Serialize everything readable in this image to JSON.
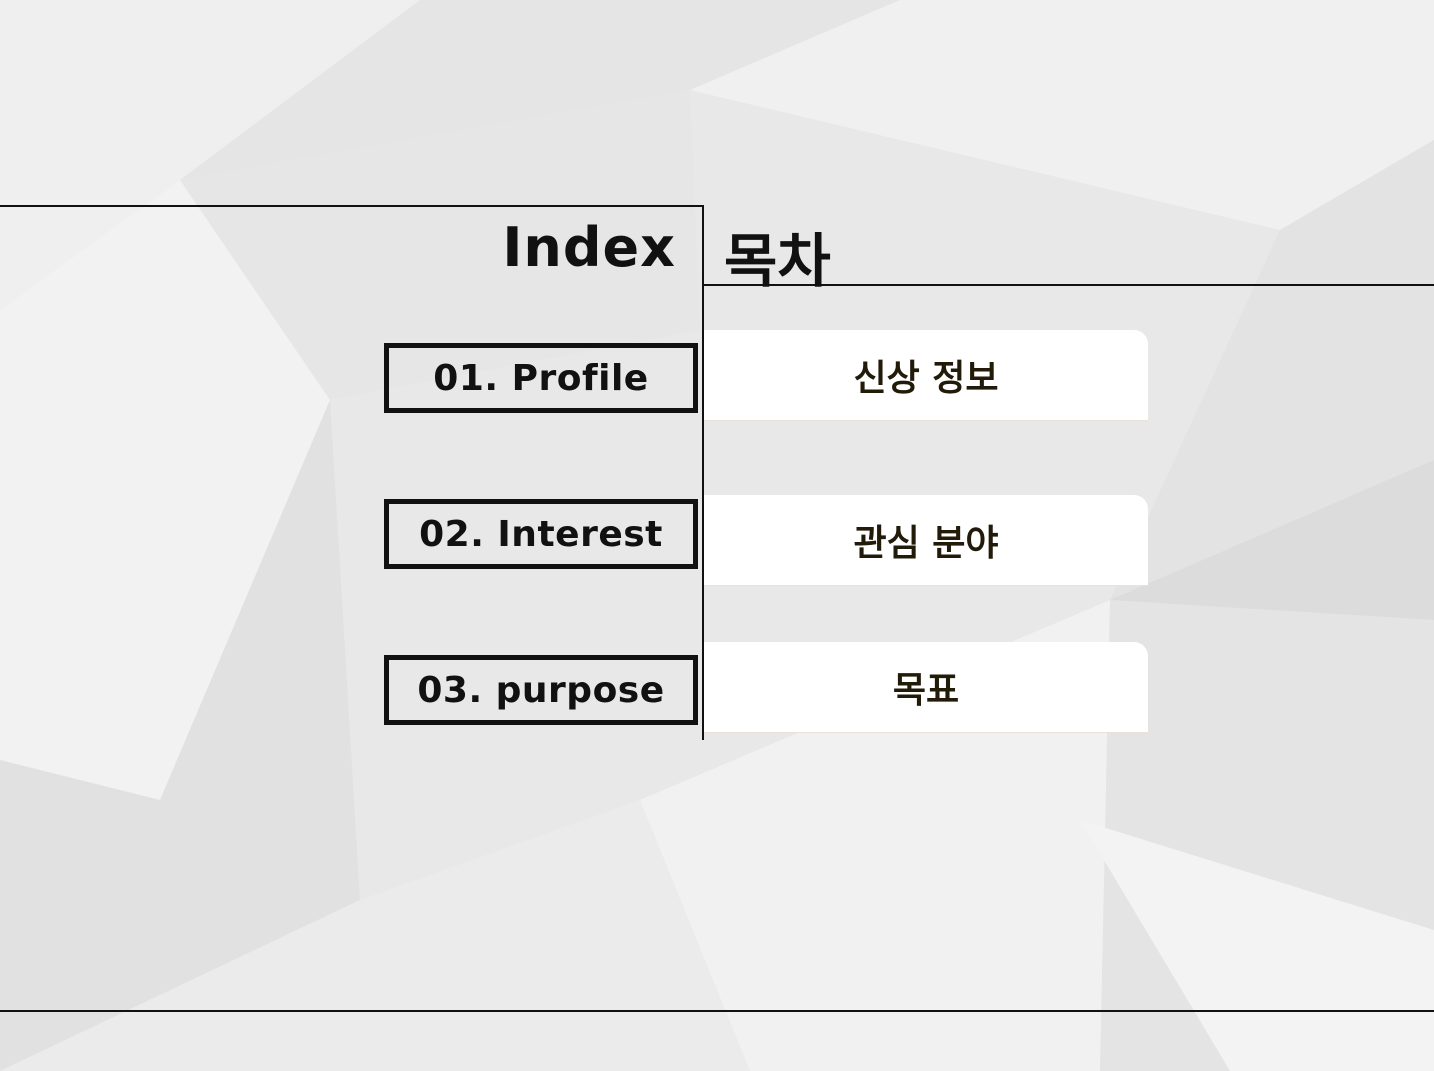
{
  "slide": {
    "title_en": "Index",
    "title_ko": "목차"
  },
  "items": [
    {
      "index_label": "01. Profile",
      "ko_label": "신상 정보"
    },
    {
      "index_label": "02. Interest",
      "ko_label": "관심 분야"
    },
    {
      "index_label": "03. purpose",
      "ko_label": "목표"
    }
  ],
  "colors": {
    "background": "#e9e9e9",
    "line": "#111111",
    "card": "#ffffff",
    "card_text": "#221b0a"
  }
}
